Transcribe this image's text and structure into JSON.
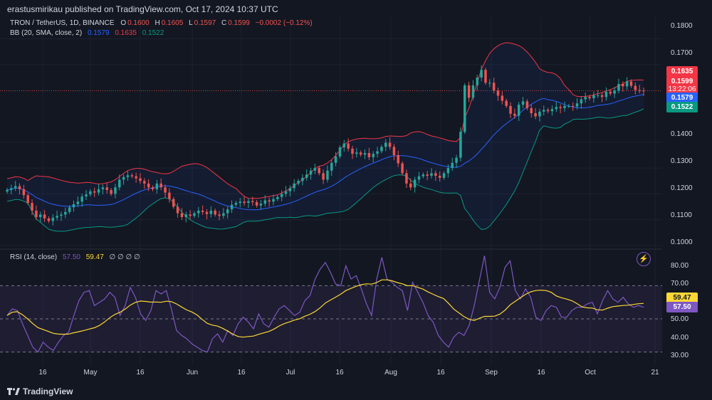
{
  "header": {
    "publisher": "erastusmirikau published on TradingView.com, Oct 17, 2024 10:37 UTC"
  },
  "legend": {
    "symbol": "TRON / TetherUS, 1D, BINANCE",
    "ohlc": {
      "o_label": "O",
      "o": "0.1600",
      "h_label": "H",
      "h": "0.1605",
      "l_label": "L",
      "l": "0.1597",
      "c_label": "C",
      "c": "0.1599",
      "change": "−0.0002 (−0.12%)"
    },
    "bb": {
      "label": "BB (20, SMA, close, 2)",
      "basis": "0.1579",
      "upper": "0.1635",
      "lower": "0.1522"
    }
  },
  "rsi_legend": {
    "label": "RSI (14, close)",
    "rsi": "57.50",
    "ma": "59.47",
    "extras": "∅ ∅ ∅ ∅"
  },
  "price_axis": [
    "0.1800",
    "0.1700",
    "0.1300",
    "0.1200",
    "0.1100",
    "0.1000",
    "0.1400"
  ],
  "price_boxes": {
    "upper": "0.1635",
    "last": "0.1599",
    "countdown": "13:22:06",
    "basis": "0.1579",
    "lower": "0.1522"
  },
  "rsi_axis": [
    "80.00",
    "70.00",
    "50.00",
    "40.00",
    "30.00"
  ],
  "rsi_boxes": {
    "ma": "59.47",
    "rsi": "57.50"
  },
  "time_axis": [
    "16",
    "May",
    "16",
    "Jun",
    "16",
    "Jul",
    "16",
    "Aug",
    "16",
    "Sep",
    "16",
    "Oct",
    "21"
  ],
  "footer": {
    "logo": "TradingView"
  },
  "colors": {
    "background": "#131722",
    "up": "#26a69a",
    "down": "#ef5350",
    "bb_upper": "#f23645",
    "bb_basis": "#2962ff",
    "bb_lower": "#089981",
    "rsi": "#7e57c2",
    "rsi_ma": "#fdd835"
  },
  "chart_data": [
    {
      "type": "candlestick",
      "title": "TRON / TetherUS, 1D, BINANCE",
      "ylim": [
        0.1,
        0.18
      ],
      "x_ticks": [
        "16",
        "May",
        "16",
        "Jun",
        "16",
        "Jul",
        "16",
        "Aug",
        "16",
        "Sep",
        "16",
        "Oct",
        "21"
      ],
      "close": [
        0.1215,
        0.1222,
        0.123,
        0.1218,
        0.1195,
        0.1165,
        0.1135,
        0.111,
        0.112,
        0.1105,
        0.1095,
        0.1108,
        0.1115,
        0.112,
        0.113,
        0.1148,
        0.116,
        0.117,
        0.119,
        0.1198,
        0.121,
        0.1205,
        0.1218,
        0.1225,
        0.1215,
        0.12,
        0.1225,
        0.1255,
        0.1265,
        0.1272,
        0.1268,
        0.126,
        0.125,
        0.124,
        0.1225,
        0.1218,
        0.124,
        0.1225,
        0.1205,
        0.118,
        0.115,
        0.1125,
        0.111,
        0.112,
        0.1115,
        0.1125,
        0.1135,
        0.113,
        0.1122,
        0.1135,
        0.112,
        0.1115,
        0.1125,
        0.114,
        0.1158,
        0.1165,
        0.117,
        0.1165,
        0.1172,
        0.1168,
        0.1155,
        0.1162,
        0.1175,
        0.117,
        0.118,
        0.1188,
        0.12,
        0.121,
        0.1222,
        0.124,
        0.125,
        0.1262,
        0.1275,
        0.129,
        0.13,
        0.128,
        0.1255,
        0.129,
        0.132,
        0.1345,
        0.138,
        0.1395,
        0.1375,
        0.1355,
        0.136,
        0.1352,
        0.1358,
        0.1342,
        0.1355,
        0.1365,
        0.1382,
        0.1398,
        0.1382,
        0.135,
        0.1318,
        0.128,
        0.124,
        0.1225,
        0.1255,
        0.1268,
        0.1275,
        0.127,
        0.128,
        0.127,
        0.1262,
        0.128,
        0.13,
        0.132,
        0.134,
        0.144,
        0.162,
        0.1572,
        0.162,
        0.165,
        0.168,
        0.163,
        0.163,
        0.16,
        0.158,
        0.156,
        0.154,
        0.151,
        0.1502,
        0.1545,
        0.1558,
        0.1532,
        0.1512,
        0.15,
        0.1518,
        0.1525,
        0.152,
        0.1528,
        0.1536,
        0.1532,
        0.154,
        0.154,
        0.1538,
        0.155,
        0.1566,
        0.1575,
        0.157,
        0.1582,
        0.1582,
        0.1575,
        0.1595,
        0.1588,
        0.16,
        0.1625,
        0.1616,
        0.1635,
        0.1618,
        0.1602,
        0.16,
        0.1599
      ],
      "bb_upper_end": 0.1635,
      "bb_basis_end": 0.1579,
      "bb_lower_end": 0.1522
    },
    {
      "type": "line",
      "title": "RSI (14, close)",
      "ylim": [
        26,
        86
      ],
      "y_ticks": [
        80,
        70,
        50,
        40,
        30
      ],
      "series": [
        {
          "name": "RSI",
          "values": [
            52,
            56,
            55,
            47,
            40,
            33,
            30,
            36,
            33,
            31,
            36,
            40,
            42,
            52,
            61,
            66,
            67,
            58,
            60,
            62,
            66,
            63,
            52,
            58,
            69,
            63,
            53,
            49,
            55,
            67,
            65,
            67,
            56,
            43,
            40,
            38,
            35,
            33,
            31,
            30,
            38,
            41,
            36,
            43,
            40,
            47,
            51,
            48,
            44,
            53,
            47,
            45,
            51,
            56,
            58,
            55,
            52,
            54,
            61,
            64,
            74,
            80,
            84,
            78,
            71,
            70,
            82,
            74,
            76,
            68,
            59,
            52,
            74,
            87,
            74,
            72,
            69,
            67,
            55,
            72,
            66,
            60,
            52,
            48,
            40,
            36,
            33,
            39,
            42,
            40,
            46,
            58,
            73,
            88,
            66,
            62,
            69,
            81,
            85,
            67,
            62,
            68,
            63,
            51,
            49,
            55,
            58,
            57,
            51,
            51,
            55,
            57,
            57,
            59,
            60,
            53,
            61,
            67,
            62,
            60,
            63,
            59,
            57,
            58,
            57
          ]
        },
        {
          "name": "RSI-based MA",
          "values": []
        }
      ]
    }
  ]
}
